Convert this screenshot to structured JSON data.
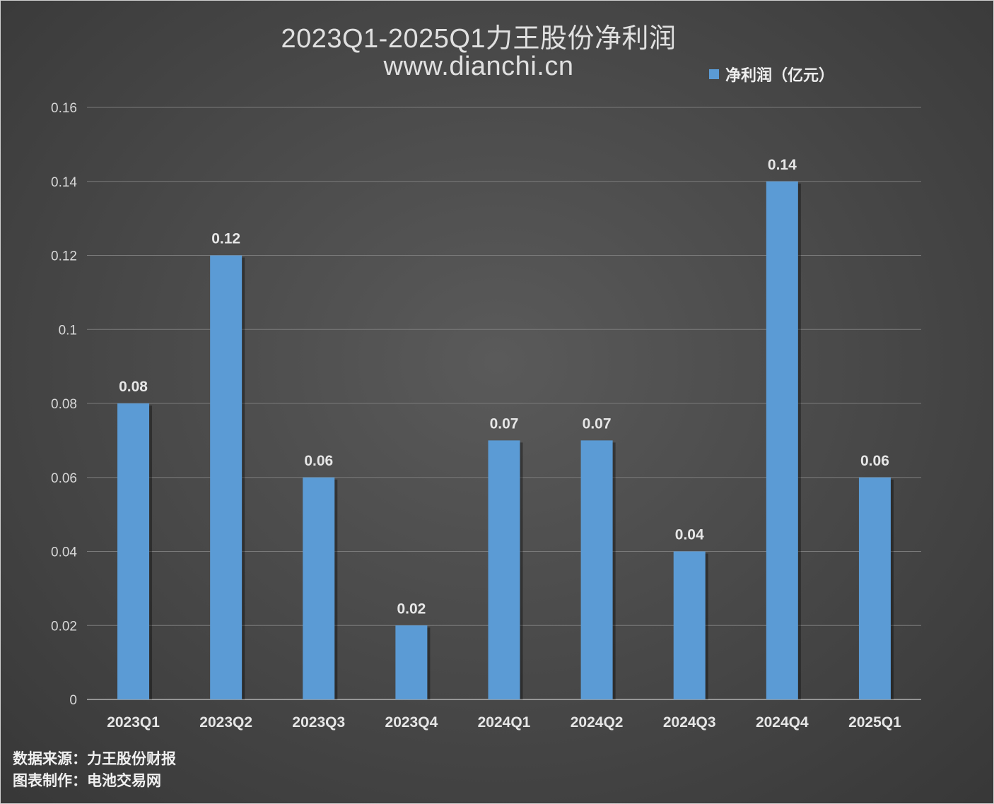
{
  "chart_data": {
    "type": "bar",
    "title": "2023Q1-2025Q1力王股份净利润",
    "subtitle": "www.dianchi.cn",
    "categories": [
      "2023Q1",
      "2023Q2",
      "2023Q3",
      "2023Q4",
      "2024Q1",
      "2024Q2",
      "2024Q3",
      "2024Q4",
      "2025Q1"
    ],
    "series": [
      {
        "name": "净利润（亿元）",
        "values": [
          0.08,
          0.12,
          0.06,
          0.02,
          0.07,
          0.07,
          0.04,
          0.14,
          0.06
        ],
        "color": "#5b9bd5"
      }
    ],
    "data_labels": [
      "0.08",
      "0.12",
      "0.06",
      "0.02",
      "0.07",
      "0.07",
      "0.04",
      "0.14",
      "0.06"
    ],
    "yticks": [
      "0",
      "0.02",
      "0.04",
      "0.06",
      "0.08",
      "0.1",
      "0.12",
      "0.14",
      "0.16"
    ],
    "ylim": [
      0,
      0.16
    ],
    "xlabel": "",
    "ylabel": "",
    "grid": true,
    "legend_position": "top-right"
  },
  "footer": {
    "source": "数据来源：力王股份财报",
    "maker": "图表制作：电池交易网"
  },
  "colors": {
    "background": "#4a4a4a",
    "bar": "#5b9bd5",
    "text": "#e0e0e0",
    "grid": "#7a7a7a"
  }
}
